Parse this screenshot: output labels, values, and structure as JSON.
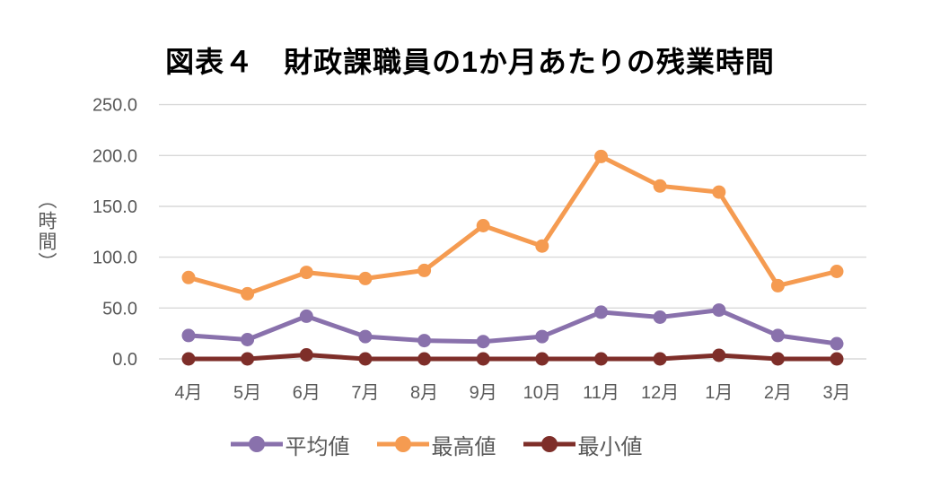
{
  "chart_data": {
    "type": "line",
    "title": "図表４　財政課職員の1か月あたりの残業時間",
    "ylabel": "（時間）",
    "xlabel": "",
    "categories": [
      "4月",
      "5月",
      "6月",
      "7月",
      "8月",
      "9月",
      "10月",
      "11月",
      "12月",
      "1月",
      "2月",
      "3月"
    ],
    "series": [
      {
        "name": "平均値",
        "color": "#8971AC",
        "values": [
          23,
          19,
          42,
          22,
          18,
          17,
          22,
          46,
          41,
          48,
          23,
          15
        ]
      },
      {
        "name": "最高値",
        "color": "#F59B51",
        "values": [
          80,
          64,
          85,
          79,
          87,
          131,
          111,
          199,
          170,
          164,
          72,
          86
        ]
      },
      {
        "name": "最小値",
        "color": "#7E2E29",
        "values": [
          0,
          0,
          4,
          0,
          0,
          0,
          0,
          0,
          0,
          3.5,
          0,
          0
        ]
      }
    ],
    "ylim": [
      0,
      250
    ],
    "yticks": [
      0,
      50,
      100,
      150,
      200,
      250
    ],
    "ytick_labels": [
      "0.0",
      "50.0",
      "100.0",
      "150.0",
      "200.0",
      "250.0"
    ],
    "grid": true,
    "grid_color": "#D9D9D9",
    "axis_text_color": "#595959",
    "title_color": "#000000",
    "legend_position": "bottom"
  }
}
